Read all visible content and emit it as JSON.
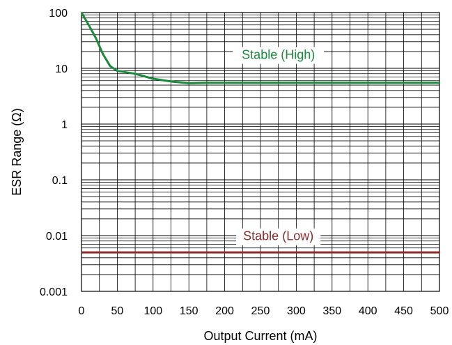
{
  "chart_data": {
    "type": "line",
    "title": "",
    "xlabel": "Output Current (mA)",
    "ylabel": "ESR Range (Ω)",
    "xlim": [
      0,
      500
    ],
    "ylim": [
      0.001,
      100
    ],
    "yscale": "log",
    "grid": true,
    "x_ticks": [
      "0",
      "50",
      "100",
      "150",
      "200",
      "250",
      "300",
      "350",
      "400",
      "450",
      "500"
    ],
    "y_ticks": [
      "100",
      "10",
      "1",
      "0.1",
      "0.01",
      "0.001"
    ],
    "series": [
      {
        "color": "#1a8a3c",
        "x": [
          0,
          10,
          20,
          30,
          40,
          50,
          75,
          100,
          125,
          150,
          175,
          200,
          300,
          400,
          500
        ],
        "y": [
          100,
          60,
          35,
          18,
          11,
          9,
          8,
          6.5,
          5.8,
          5.4,
          5.5,
          5.5,
          5.5,
          5.5,
          5.5
        ]
      },
      {
        "color": "#8b2a2a",
        "x": [
          0,
          500
        ],
        "y": [
          0.005,
          0.005
        ]
      }
    ],
    "annotations": [
      {
        "text": "Stable (High)",
        "x": 275,
        "y": 17,
        "color": "#1a8a3c"
      },
      {
        "text": "Stable (Low)",
        "x": 275,
        "y": 0.0095,
        "color": "#8b2a2a"
      }
    ]
  }
}
